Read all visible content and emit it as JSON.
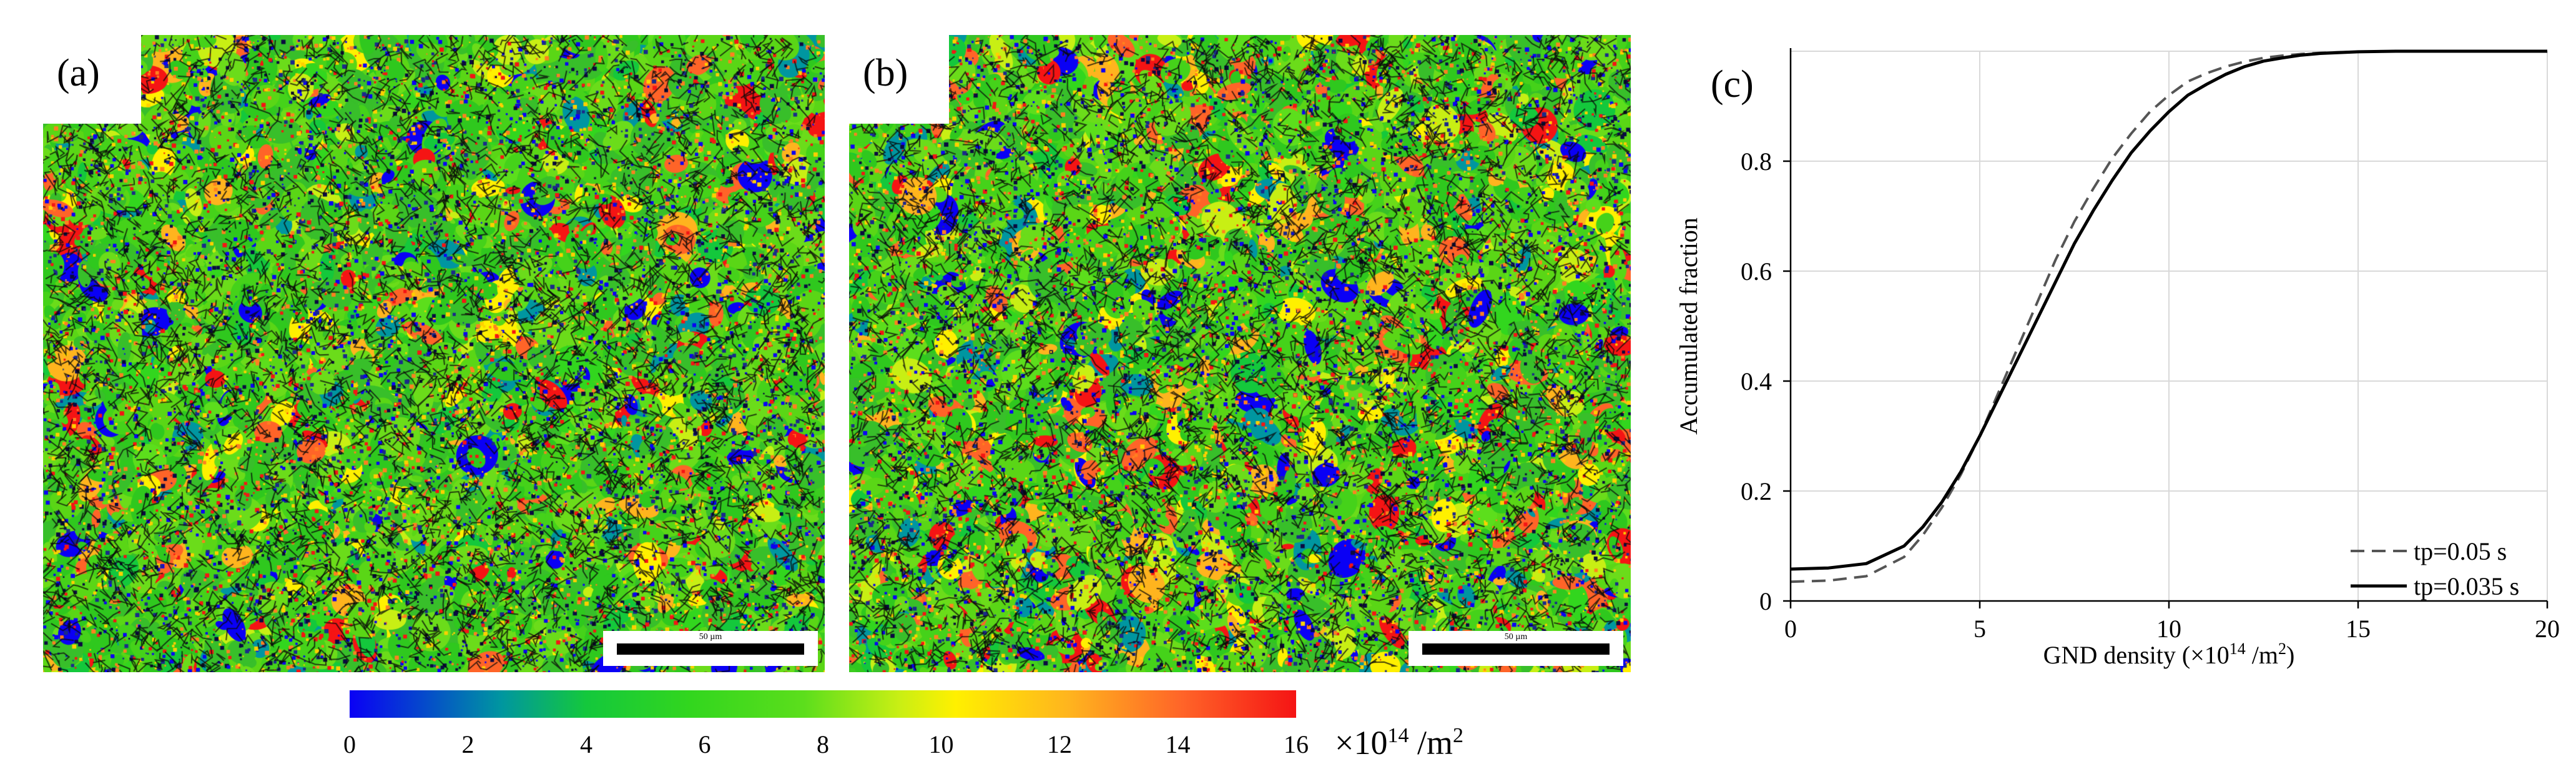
{
  "panels": [
    {
      "label": "(a)",
      "scalebar": "50 µm"
    },
    {
      "label": "(b)",
      "scalebar": "50 µm"
    }
  ],
  "colorbar": {
    "ticks": [
      "0",
      "2",
      "4",
      "6",
      "8",
      "10",
      "12",
      "14",
      "16"
    ],
    "range": [
      0,
      16
    ],
    "unit_prefix": "×10",
    "unit_exp": "14",
    "unit_suffix": " /m",
    "unit_exp2": "2",
    "colors": [
      "#0a00f5",
      "#0096a0",
      "#14c83c",
      "#32d61e",
      "#5cde1c",
      "#c8ef14",
      "#fff000",
      "#ffb41e",
      "#ff6428",
      "#f51414"
    ]
  },
  "chart_data": {
    "type": "line",
    "panel_label": "(c)",
    "xlabel_prefix": "GND density (×10",
    "xlabel_exp": "14",
    "xlabel_suffix": " /m",
    "xlabel_exp2": "2",
    "xlabel_close": ")",
    "ylabel": "Accumulated fraction",
    "xlim": [
      0,
      20
    ],
    "ylim": [
      0,
      1
    ],
    "xticks": [
      "0",
      "5",
      "10",
      "15",
      "20"
    ],
    "yticks": [
      "0",
      "0.2",
      "0.4",
      "0.6",
      "0.8"
    ],
    "grid": true,
    "legend_position": "bottom-right",
    "series": [
      {
        "name": "tp=0.05 s",
        "style": "dashed",
        "color": "#555555",
        "x": [
          0,
          1,
          2,
          3,
          3.5,
          4,
          4.5,
          5,
          5.5,
          6,
          6.5,
          7,
          7.5,
          8,
          8.5,
          9,
          9.5,
          10,
          10.5,
          11,
          11.5,
          12,
          12.5,
          13,
          13.5,
          14,
          15,
          16,
          17,
          18,
          19,
          20
        ],
        "y": [
          0.035,
          0.037,
          0.045,
          0.08,
          0.12,
          0.17,
          0.23,
          0.3,
          0.38,
          0.46,
          0.54,
          0.62,
          0.69,
          0.75,
          0.805,
          0.85,
          0.89,
          0.92,
          0.945,
          0.96,
          0.972,
          0.981,
          0.988,
          0.992,
          0.995,
          0.997,
          0.999,
          1.0,
          1.0,
          1.0,
          1.0,
          1.0
        ]
      },
      {
        "name": "tp=0.035 s",
        "style": "solid",
        "color": "#000000",
        "x": [
          0,
          1,
          2,
          3,
          3.5,
          4,
          4.5,
          5,
          5.5,
          6,
          6.5,
          7,
          7.5,
          8,
          8.5,
          9,
          9.5,
          10,
          10.5,
          11,
          11.5,
          12,
          12.5,
          13,
          13.5,
          14,
          15,
          16,
          17,
          18,
          19,
          20
        ],
        "y": [
          0.058,
          0.06,
          0.068,
          0.1,
          0.135,
          0.18,
          0.235,
          0.3,
          0.37,
          0.44,
          0.51,
          0.58,
          0.65,
          0.71,
          0.765,
          0.815,
          0.855,
          0.89,
          0.92,
          0.94,
          0.958,
          0.972,
          0.982,
          0.988,
          0.993,
          0.996,
          0.999,
          1.0,
          1.0,
          1.0,
          1.0,
          1.0
        ]
      }
    ]
  }
}
